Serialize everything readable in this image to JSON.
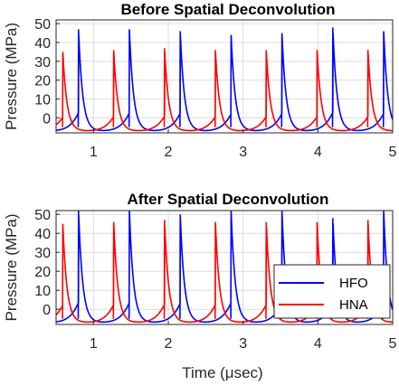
{
  "chart_data": [
    {
      "type": "line",
      "title": "Before Spatial Deconvolution",
      "xlabel": "",
      "ylabel": "Pressure (MPa)",
      "xlim": [
        0.5,
        5
      ],
      "ylim": [
        -8,
        52
      ],
      "xticks": [
        1,
        2,
        3,
        4,
        5
      ],
      "yticks": [
        0,
        10,
        20,
        30,
        40,
        50
      ],
      "grid": true,
      "series": [
        {
          "name": "HFO",
          "color": "#0000ff",
          "baseline": -7,
          "period": 0.68,
          "phase": 0.8,
          "peaks": [
            47,
            47,
            46,
            44,
            45,
            48,
            46,
            46,
            45,
            50
          ],
          "peak_times": [
            0.8,
            1.48,
            2.16,
            2.84,
            3.52,
            4.2,
            4.88
          ],
          "peak_values": [
            47,
            47,
            46,
            44,
            45,
            48,
            46
          ]
        },
        {
          "name": "HNA",
          "color": "#ff0000",
          "baseline": -7,
          "period": 0.68,
          "phase": 0.59,
          "peaks": [
            35,
            36,
            37,
            36,
            36,
            36,
            36
          ],
          "peak_times": [
            0.59,
            1.27,
            1.95,
            2.63,
            3.31,
            3.99,
            4.67
          ],
          "peak_values": [
            35,
            36,
            37,
            36,
            36,
            36,
            36
          ]
        }
      ]
    },
    {
      "type": "line",
      "title": "After Spatial Deconvolution",
      "xlabel": "Time (μsec)",
      "ylabel": "Pressure (MPa)",
      "xlim": [
        0.5,
        5
      ],
      "ylim": [
        -8,
        52
      ],
      "xticks": [
        1,
        2,
        3,
        4,
        5
      ],
      "yticks": [
        0,
        10,
        20,
        30,
        40,
        50
      ],
      "grid": true,
      "legend": "bottom-right",
      "series": [
        {
          "name": "HFO",
          "color": "#0000ff",
          "baseline": -7,
          "peak_times": [
            0.8,
            1.48,
            2.16,
            2.84,
            3.52,
            4.2,
            4.88
          ],
          "peak_values": [
            52,
            52,
            50,
            52,
            52,
            48,
            52
          ]
        },
        {
          "name": "HNA",
          "color": "#ff0000",
          "baseline": -7,
          "peak_times": [
            0.59,
            1.27,
            1.95,
            2.63,
            3.31,
            3.99,
            4.67
          ],
          "peak_values": [
            45,
            46,
            47,
            46,
            46,
            46,
            47
          ]
        }
      ]
    }
  ]
}
